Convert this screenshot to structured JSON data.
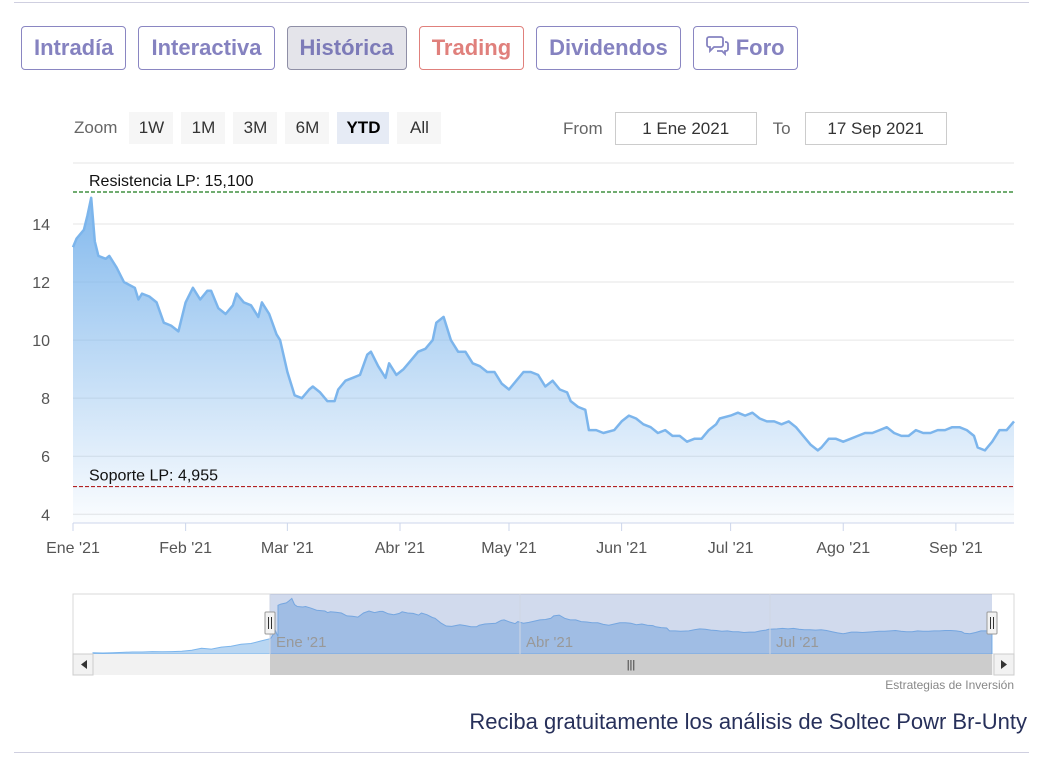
{
  "tabs": [
    {
      "label": "Intradía",
      "icon": null
    },
    {
      "label": "Interactiva",
      "icon": null
    },
    {
      "label": "Histórica",
      "icon": null
    },
    {
      "label": "Trading",
      "icon": null
    },
    {
      "label": "Dividendos",
      "icon": null
    },
    {
      "label": "Foro",
      "icon": "speech-bubbles-icon"
    }
  ],
  "active_tab": "Histórica",
  "colors": {
    "accent": "#8582c0",
    "trading": "#e0807c",
    "line": "#7cb5ec",
    "resistance": "#1a7a1a",
    "support": "#b22222"
  },
  "zoom": {
    "label": "Zoom",
    "buttons": [
      "1W",
      "1M",
      "3M",
      "6M",
      "YTD",
      "All"
    ],
    "selected": "YTD"
  },
  "range": {
    "from_label": "From",
    "from_value": "1 Ene 2021",
    "to_label": "To",
    "to_value": "17 Sep 2021"
  },
  "chart_data": {
    "type": "area",
    "x_ticks": [
      "Ene '21",
      "Feb '21",
      "Mar '21",
      "Abr '21",
      "May '21",
      "Jun '21",
      "Jul '21",
      "Ago '21",
      "Sep '21"
    ],
    "y_ticks": [
      4,
      6,
      8,
      10,
      12,
      14
    ],
    "ylim": [
      3.7,
      16.1
    ],
    "xlim": [
      "2021-01-01",
      "2021-09-17"
    ],
    "grid": true,
    "reference_lines": [
      {
        "label": "Resistencia LP: 15,100",
        "value": 15.1,
        "color": "#1a7a1a"
      },
      {
        "label": "Soporte LP: 4,955",
        "value": 4.955,
        "color": "#b22222"
      }
    ],
    "series": [
      {
        "values": [
          [
            "2021-01-01",
            13.2
          ],
          [
            "2021-01-02",
            13.5
          ],
          [
            "2021-01-04",
            13.8
          ],
          [
            "2021-01-05",
            14.3
          ],
          [
            "2021-01-06",
            14.9
          ],
          [
            "2021-01-07",
            13.4
          ],
          [
            "2021-01-08",
            12.9
          ],
          [
            "2021-01-10",
            12.8
          ],
          [
            "2021-01-11",
            12.9
          ],
          [
            "2021-01-13",
            12.5
          ],
          [
            "2021-01-15",
            12.0
          ],
          [
            "2021-01-18",
            11.8
          ],
          [
            "2021-01-19",
            11.4
          ],
          [
            "2021-01-20",
            11.6
          ],
          [
            "2021-01-22",
            11.5
          ],
          [
            "2021-01-24",
            11.3
          ],
          [
            "2021-01-26",
            10.6
          ],
          [
            "2021-01-28",
            10.5
          ],
          [
            "2021-01-30",
            10.3
          ],
          [
            "2021-02-01",
            11.3
          ],
          [
            "2021-02-03",
            11.8
          ],
          [
            "2021-02-05",
            11.4
          ],
          [
            "2021-02-07",
            11.7
          ],
          [
            "2021-02-08",
            11.7
          ],
          [
            "2021-02-10",
            11.1
          ],
          [
            "2021-02-12",
            10.9
          ],
          [
            "2021-02-14",
            11.2
          ],
          [
            "2021-02-15",
            11.6
          ],
          [
            "2021-02-17",
            11.3
          ],
          [
            "2021-02-19",
            11.2
          ],
          [
            "2021-02-21",
            10.8
          ],
          [
            "2021-02-22",
            11.3
          ],
          [
            "2021-02-24",
            10.9
          ],
          [
            "2021-02-26",
            10.2
          ],
          [
            "2021-02-27",
            10.0
          ],
          [
            "2021-03-01",
            8.9
          ],
          [
            "2021-03-03",
            8.1
          ],
          [
            "2021-03-05",
            8.0
          ],
          [
            "2021-03-07",
            8.3
          ],
          [
            "2021-03-08",
            8.4
          ],
          [
            "2021-03-10",
            8.2
          ],
          [
            "2021-03-12",
            7.9
          ],
          [
            "2021-03-14",
            7.9
          ],
          [
            "2021-03-15",
            8.3
          ],
          [
            "2021-03-17",
            8.6
          ],
          [
            "2021-03-19",
            8.7
          ],
          [
            "2021-03-21",
            8.8
          ],
          [
            "2021-03-23",
            9.5
          ],
          [
            "2021-03-24",
            9.6
          ],
          [
            "2021-03-26",
            9.1
          ],
          [
            "2021-03-28",
            8.7
          ],
          [
            "2021-03-29",
            9.2
          ],
          [
            "2021-03-31",
            8.8
          ],
          [
            "2021-04-02",
            9.0
          ],
          [
            "2021-04-04",
            9.3
          ],
          [
            "2021-04-06",
            9.6
          ],
          [
            "2021-04-08",
            9.7
          ],
          [
            "2021-04-10",
            10.0
          ],
          [
            "2021-04-11",
            10.6
          ],
          [
            "2021-04-13",
            10.8
          ],
          [
            "2021-04-15",
            10.0
          ],
          [
            "2021-04-17",
            9.6
          ],
          [
            "2021-04-19",
            9.6
          ],
          [
            "2021-04-21",
            9.2
          ],
          [
            "2021-04-23",
            9.1
          ],
          [
            "2021-04-25",
            8.9
          ],
          [
            "2021-04-27",
            8.9
          ],
          [
            "2021-04-29",
            8.5
          ],
          [
            "2021-05-01",
            8.3
          ],
          [
            "2021-05-03",
            8.6
          ],
          [
            "2021-05-05",
            8.9
          ],
          [
            "2021-05-07",
            8.9
          ],
          [
            "2021-05-09",
            8.8
          ],
          [
            "2021-05-11",
            8.4
          ],
          [
            "2021-05-13",
            8.6
          ],
          [
            "2021-05-15",
            8.3
          ],
          [
            "2021-05-17",
            8.2
          ],
          [
            "2021-05-18",
            7.9
          ],
          [
            "2021-05-20",
            7.7
          ],
          [
            "2021-05-22",
            7.6
          ],
          [
            "2021-05-23",
            6.9
          ],
          [
            "2021-05-25",
            6.9
          ],
          [
            "2021-05-27",
            6.8
          ],
          [
            "2021-05-30",
            6.9
          ],
          [
            "2021-06-01",
            7.2
          ],
          [
            "2021-06-03",
            7.4
          ],
          [
            "2021-06-05",
            7.3
          ],
          [
            "2021-06-07",
            7.1
          ],
          [
            "2021-06-09",
            7.0
          ],
          [
            "2021-06-11",
            6.8
          ],
          [
            "2021-06-13",
            6.9
          ],
          [
            "2021-06-15",
            6.7
          ],
          [
            "2021-06-17",
            6.7
          ],
          [
            "2021-06-19",
            6.5
          ],
          [
            "2021-06-21",
            6.6
          ],
          [
            "2021-06-23",
            6.6
          ],
          [
            "2021-06-25",
            6.9
          ],
          [
            "2021-06-27",
            7.1
          ],
          [
            "2021-06-28",
            7.3
          ],
          [
            "2021-07-01",
            7.4
          ],
          [
            "2021-07-03",
            7.5
          ],
          [
            "2021-07-05",
            7.4
          ],
          [
            "2021-07-07",
            7.5
          ],
          [
            "2021-07-09",
            7.3
          ],
          [
            "2021-07-11",
            7.2
          ],
          [
            "2021-07-13",
            7.2
          ],
          [
            "2021-07-15",
            7.1
          ],
          [
            "2021-07-17",
            7.2
          ],
          [
            "2021-07-19",
            7.0
          ],
          [
            "2021-07-21",
            6.7
          ],
          [
            "2021-07-23",
            6.4
          ],
          [
            "2021-07-25",
            6.2
          ],
          [
            "2021-07-26",
            6.3
          ],
          [
            "2021-07-28",
            6.6
          ],
          [
            "2021-07-30",
            6.6
          ],
          [
            "2021-08-01",
            6.5
          ],
          [
            "2021-08-03",
            6.6
          ],
          [
            "2021-08-05",
            6.7
          ],
          [
            "2021-08-07",
            6.8
          ],
          [
            "2021-08-09",
            6.8
          ],
          [
            "2021-08-11",
            6.9
          ],
          [
            "2021-08-13",
            7.0
          ],
          [
            "2021-08-15",
            6.8
          ],
          [
            "2021-08-17",
            6.7
          ],
          [
            "2021-08-19",
            6.7
          ],
          [
            "2021-08-21",
            6.9
          ],
          [
            "2021-08-23",
            6.8
          ],
          [
            "2021-08-25",
            6.8
          ],
          [
            "2021-08-27",
            6.9
          ],
          [
            "2021-08-29",
            6.9
          ],
          [
            "2021-08-31",
            7.0
          ],
          [
            "2021-09-02",
            7.0
          ],
          [
            "2021-09-04",
            6.9
          ],
          [
            "2021-09-06",
            6.7
          ],
          [
            "2021-09-07",
            6.3
          ],
          [
            "2021-09-09",
            6.2
          ],
          [
            "2021-09-11",
            6.5
          ],
          [
            "2021-09-13",
            6.9
          ],
          [
            "2021-09-15",
            6.9
          ],
          [
            "2021-09-17",
            7.2
          ]
        ]
      }
    ],
    "navigator": {
      "x_ticks": [
        "Ene '21",
        "Abr '21",
        "Jul '21"
      ],
      "scroll_grip": "|||"
    }
  },
  "credit": "Estrategias de Inversión",
  "footer_link": "Reciba gratuitamente los análisis de Soltec Powr Br-Unty"
}
